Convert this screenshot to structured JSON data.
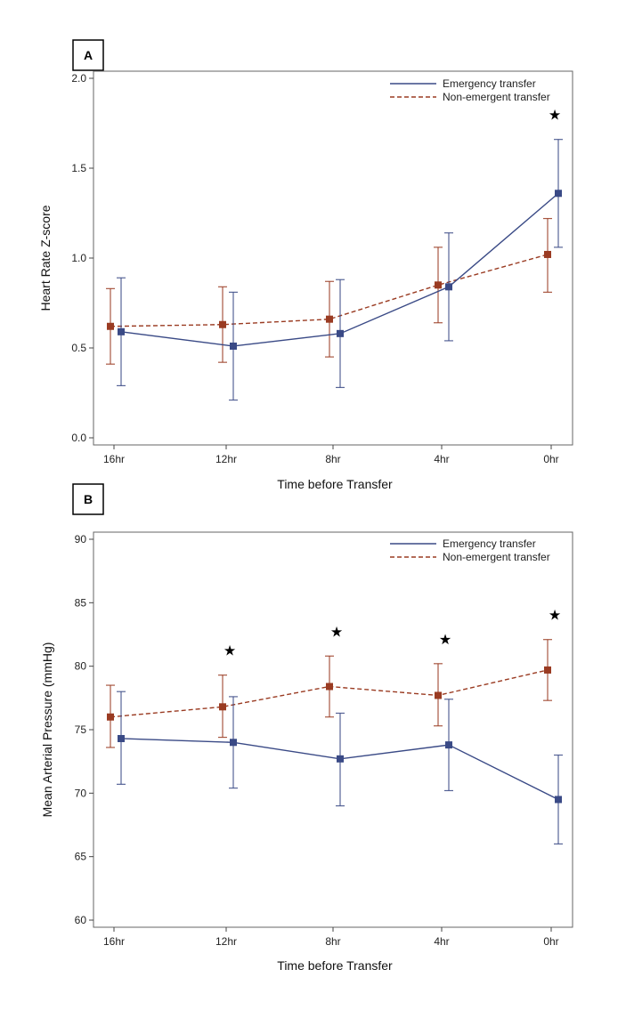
{
  "chart_data": [
    {
      "panel": "A",
      "type": "line",
      "title": "",
      "xlabel": "Time before Transfer",
      "ylabel": "Heart Rate Z-score",
      "categories": [
        "16hr",
        "12hr",
        "8hr",
        "4hr",
        "0hr"
      ],
      "ylim": [
        0.0,
        2.0
      ],
      "yticks": [
        "0.0",
        "0.5",
        "1.0",
        "1.5",
        "2.0"
      ],
      "grid": false,
      "legend_position": "top-right",
      "series": [
        {
          "name": "Emergency transfer",
          "color": "#3a4a86",
          "style": "solid",
          "values": [
            0.59,
            0.51,
            0.58,
            0.84,
            1.36
          ],
          "lower": [
            0.29,
            0.21,
            0.28,
            0.54,
            1.06
          ],
          "upper": [
            0.89,
            0.81,
            0.88,
            1.14,
            1.66
          ]
        },
        {
          "name": "Non-emergent transfer",
          "color": "#9a3b22",
          "style": "dashed",
          "values": [
            0.62,
            0.63,
            0.66,
            0.85,
            1.02
          ],
          "lower": [
            0.41,
            0.42,
            0.45,
            0.64,
            0.81
          ],
          "upper": [
            0.83,
            0.84,
            0.87,
            1.06,
            1.22
          ]
        }
      ],
      "annotations": [
        {
          "category": "0hr",
          "text": "★"
        }
      ]
    },
    {
      "panel": "B",
      "type": "line",
      "title": "",
      "xlabel": "Time before Transfer",
      "ylabel": "Mean Arterial Pressure (mmHg)",
      "categories": [
        "16hr",
        "12hr",
        "8hr",
        "4hr",
        "0hr"
      ],
      "ylim": [
        60,
        90
      ],
      "yticks": [
        "60",
        "65",
        "70",
        "75",
        "80",
        "85",
        "90"
      ],
      "grid": false,
      "legend_position": "top-right",
      "series": [
        {
          "name": "Emergency transfer",
          "color": "#3a4a86",
          "style": "solid",
          "values": [
            74.3,
            74.0,
            72.7,
            73.8,
            69.5
          ],
          "lower": [
            70.7,
            70.4,
            69.0,
            70.2,
            66.0
          ],
          "upper": [
            78.0,
            77.6,
            76.3,
            77.4,
            73.0
          ]
        },
        {
          "name": "Non-emergent transfer",
          "color": "#9a3b22",
          "style": "dashed",
          "values": [
            76.0,
            76.8,
            78.4,
            77.7,
            79.7
          ],
          "lower": [
            73.6,
            74.4,
            76.0,
            75.3,
            77.3
          ],
          "upper": [
            78.5,
            79.3,
            80.8,
            80.2,
            82.1
          ]
        }
      ],
      "annotations": [
        {
          "category": "12hr",
          "text": "★"
        },
        {
          "category": "8hr",
          "text": "★"
        },
        {
          "category": "4hr",
          "text": "★"
        },
        {
          "category": "0hr",
          "text": "★"
        }
      ]
    }
  ]
}
